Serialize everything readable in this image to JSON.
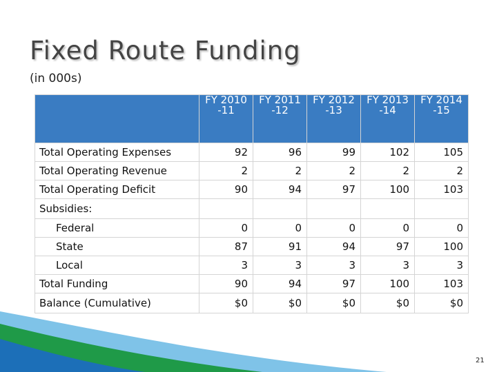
{
  "slide": {
    "title": "Fixed Route Funding",
    "subtitle": "(in 000s)",
    "page_number": "21"
  },
  "table": {
    "header": [
      [
        "FY 2010",
        "-11"
      ],
      [
        "FY 2011",
        "-12"
      ],
      [
        "FY 2012",
        "-13"
      ],
      [
        "FY 2013",
        "-14"
      ],
      [
        "FY 2014",
        "-15"
      ]
    ],
    "rows": [
      {
        "label": "Total Operating Expenses",
        "values": [
          "92",
          "96",
          "99",
          "102",
          "105"
        ]
      },
      {
        "label": "Total Operating Revenue",
        "values": [
          "2",
          "2",
          "2",
          "2",
          "2"
        ]
      },
      {
        "label": "Total Operating Deficit",
        "values": [
          "90",
          "94",
          "97",
          "100",
          "103"
        ]
      },
      {
        "label": "Subsidies:",
        "values": [
          "",
          "",
          "",
          "",
          ""
        ]
      },
      {
        "label": "Federal",
        "values": [
          "0",
          "0",
          "0",
          "0",
          "0"
        ]
      },
      {
        "label": "State",
        "values": [
          "87",
          "91",
          "94",
          "97",
          "100"
        ]
      },
      {
        "label": "Local",
        "values": [
          "3",
          "3",
          "3",
          "3",
          "3"
        ]
      },
      {
        "label": "Total Funding",
        "values": [
          "90",
          "94",
          "97",
          "100",
          "103"
        ]
      },
      {
        "label": "Balance (Cumulative)",
        "values": [
          "$0",
          "$0",
          "$0",
          "$0",
          "$0"
        ]
      }
    ]
  },
  "colors": {
    "header_blue": "#3a7cc2",
    "accent_green": "#1f9a48",
    "accent_blue": "#1c6fb8"
  }
}
